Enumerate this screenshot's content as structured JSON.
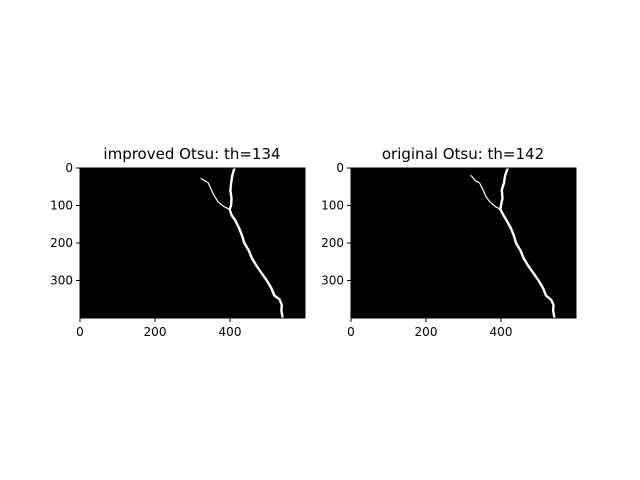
{
  "chart_data": [
    {
      "type": "image",
      "title": "improved Otsu: th=134",
      "xlim": [
        0,
        600
      ],
      "ylim": [
        400,
        0
      ],
      "xticks": [
        0,
        200,
        400
      ],
      "yticks": [
        0,
        100,
        200,
        300
      ],
      "background": "#000000",
      "foreground": "#ffffff",
      "crack_path": [
        [
          412,
          0
        ],
        [
          406,
          20
        ],
        [
          403,
          40
        ],
        [
          401,
          60
        ],
        [
          404,
          80
        ],
        [
          403,
          100
        ],
        [
          399,
          110
        ],
        [
          404,
          125
        ],
        [
          414,
          140
        ],
        [
          424,
          160
        ],
        [
          432,
          180
        ],
        [
          438,
          200
        ],
        [
          450,
          220
        ],
        [
          458,
          240
        ],
        [
          470,
          260
        ],
        [
          484,
          280
        ],
        [
          498,
          300
        ],
        [
          510,
          320
        ],
        [
          518,
          340
        ],
        [
          532,
          350
        ],
        [
          538,
          365
        ],
        [
          537,
          380
        ],
        [
          540,
          398
        ]
      ],
      "crack_branch": [
        [
          323,
          28
        ],
        [
          333,
          34
        ],
        [
          342,
          40
        ],
        [
          350,
          58
        ],
        [
          358,
          74
        ],
        [
          368,
          90
        ],
        [
          382,
          102
        ],
        [
          399,
          110
        ]
      ]
    },
    {
      "type": "image",
      "title": "original Otsu: th=142",
      "xlim": [
        0,
        600
      ],
      "ylim": [
        400,
        0
      ],
      "xticks": [
        0,
        200,
        400
      ],
      "yticks": [
        0,
        100,
        200,
        300
      ],
      "background": "#000000",
      "foreground": "#ffffff",
      "crack_path": [
        [
          418,
          0
        ],
        [
          411,
          20
        ],
        [
          408,
          40
        ],
        [
          402,
          58
        ],
        [
          404,
          80
        ],
        [
          400,
          100
        ],
        [
          398,
          110
        ],
        [
          406,
          125
        ],
        [
          415,
          140
        ],
        [
          426,
          160
        ],
        [
          434,
          180
        ],
        [
          440,
          200
        ],
        [
          452,
          220
        ],
        [
          460,
          240
        ],
        [
          472,
          260
        ],
        [
          486,
          280
        ],
        [
          500,
          300
        ],
        [
          512,
          320
        ],
        [
          520,
          340
        ],
        [
          534,
          352
        ],
        [
          540,
          365
        ],
        [
          539,
          380
        ],
        [
          542,
          398
        ]
      ],
      "crack_branch": [
        [
          320,
          20
        ],
        [
          332,
          34
        ],
        [
          343,
          40
        ],
        [
          352,
          58
        ],
        [
          360,
          76
        ],
        [
          370,
          90
        ],
        [
          384,
          102
        ],
        [
          398,
          110
        ]
      ]
    }
  ]
}
